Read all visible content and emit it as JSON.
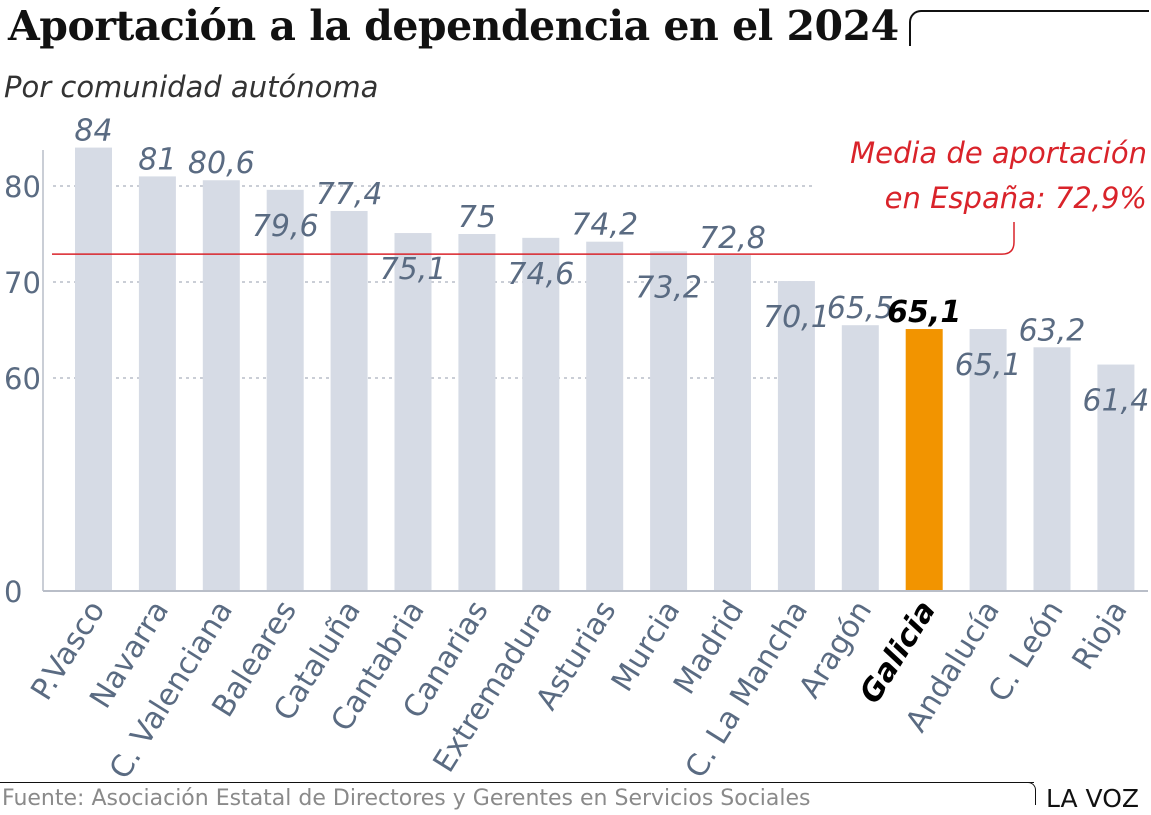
{
  "title": "Aportación a la dependencia en el 2024",
  "subtitle": "Por comunidad autónoma",
  "source": "Fuente: Asociación Estatal de Directores y Gerentes en Servicios Sociales",
  "brand": "LA VOZ",
  "colors": {
    "bar": "#d6dbe5",
    "highlight": "#f29400",
    "mean_line": "#d9232a",
    "grid": "#b9bec8",
    "text": "#5a6b82"
  },
  "chart_data": {
    "type": "bar",
    "title": "Aportación a la dependencia en el 2024",
    "subtitle": "Por comunidad autónoma",
    "categories": [
      "P.Vasco",
      "Navarra",
      "C. Valenciana",
      "Baleares",
      "Cataluña",
      "Cantabria",
      "Canarias",
      "Extremadura",
      "Asturias",
      "Murcia",
      "Madrid",
      "C. La Mancha",
      "Aragón",
      "Galicia",
      "Andalucía",
      "C. León",
      "Rioja"
    ],
    "values": [
      84,
      81,
      80.6,
      79.6,
      77.4,
      75.1,
      75,
      74.6,
      74.2,
      73.2,
      72.8,
      70.1,
      65.5,
      65.1,
      65.1,
      63.2,
      61.4
    ],
    "value_labels": [
      "84",
      "81",
      "80,6",
      "79,6",
      "77,4",
      "75,1",
      "75",
      "74,6",
      "74,2",
      "73,2",
      "72,8",
      "70,1",
      "65,5",
      "65,1",
      "65,1",
      "63,2",
      "61,4"
    ],
    "label_position": [
      "above",
      "above",
      "above",
      "below",
      "above",
      "below",
      "above",
      "below",
      "above",
      "below",
      "above",
      "below",
      "above",
      "above",
      "below",
      "above",
      "below"
    ],
    "highlight": "Galicia",
    "yticks": [
      0,
      60,
      70,
      80
    ],
    "ytick_labels": [
      "0",
      "60",
      "70",
      "80"
    ],
    "axis_break": true,
    "ylim": [
      0,
      85
    ],
    "grid": true,
    "mean": {
      "value": 72.9,
      "label_line1": "Media de aportación",
      "label_line2": "en España: 72,9%"
    },
    "xlabel": "",
    "ylabel": ""
  }
}
